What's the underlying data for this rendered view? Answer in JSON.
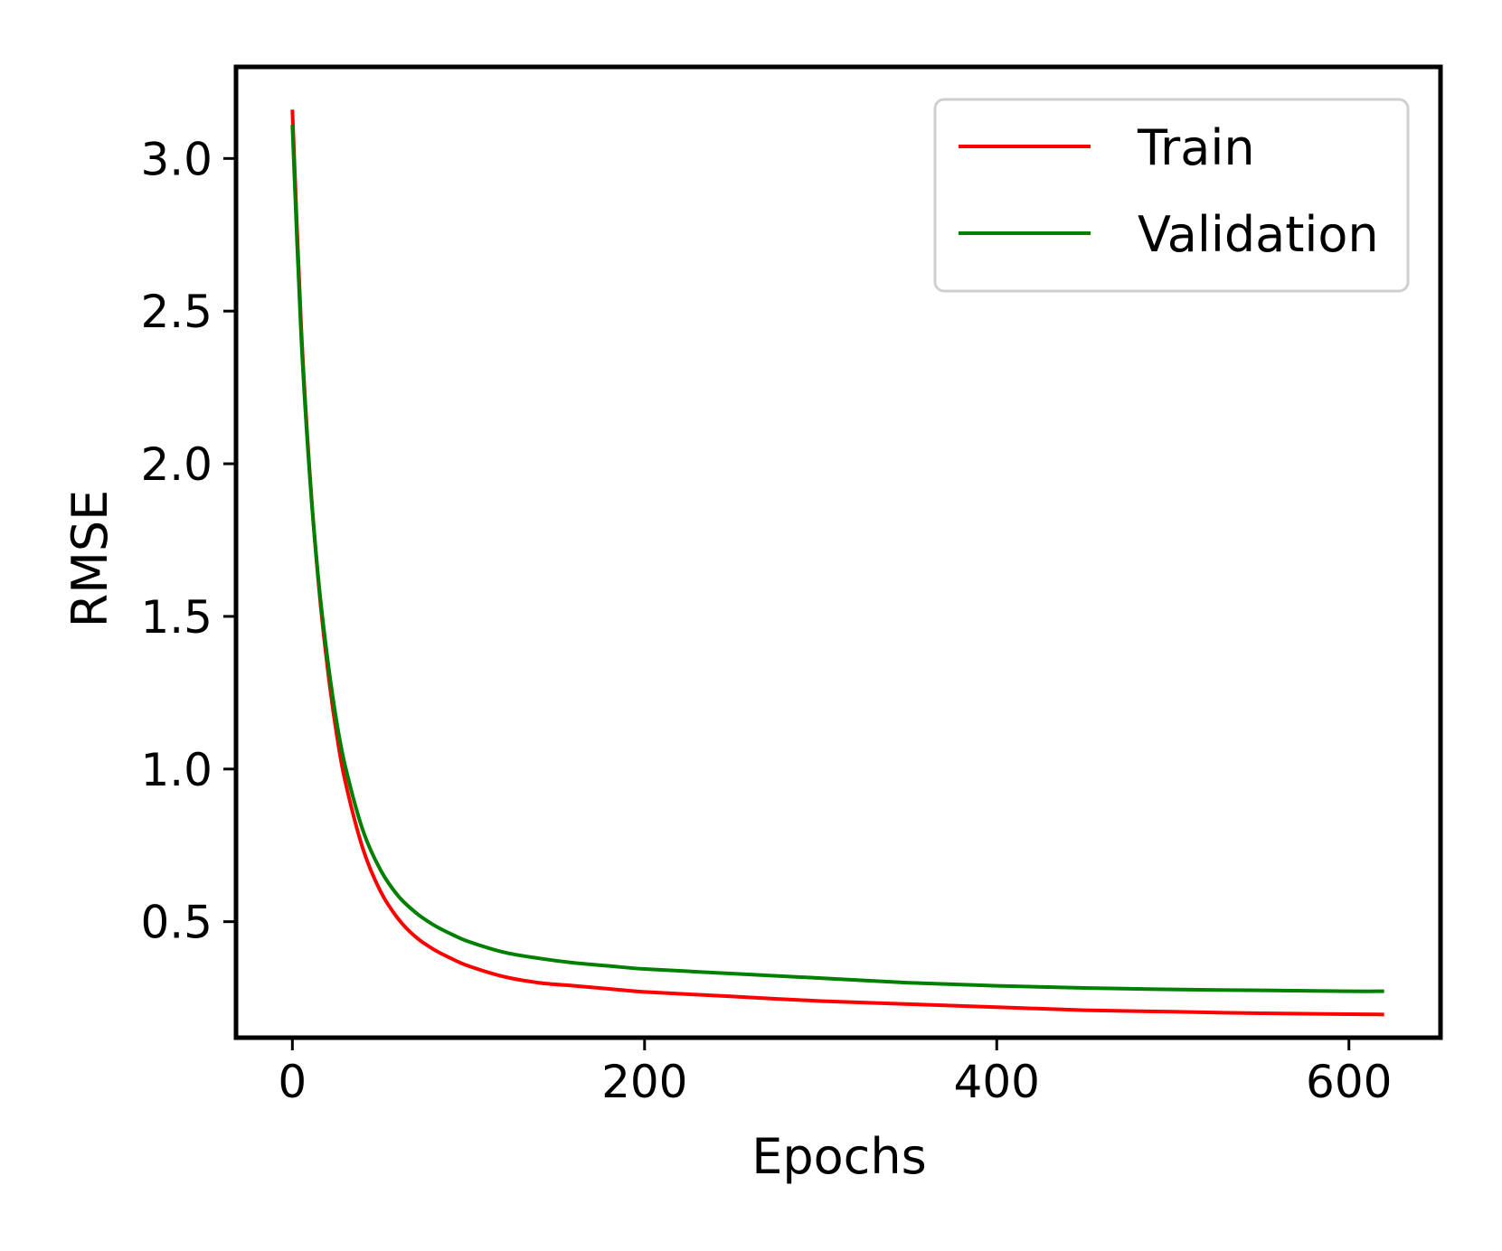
{
  "chart_data": {
    "type": "line",
    "title": "",
    "xlabel": "Epochs",
    "ylabel": "RMSE",
    "xlim": [
      -32,
      652
    ],
    "ylim": [
      0.12,
      3.3
    ],
    "xticks": [
      0,
      200,
      400,
      600
    ],
    "xtick_labels": [
      "0",
      "200",
      "400",
      "600"
    ],
    "yticks": [
      0.5,
      1.0,
      1.5,
      2.0,
      2.5,
      3.0
    ],
    "ytick_labels": [
      "0.5",
      "1.0",
      "1.5",
      "2.0",
      "2.5",
      "3.0"
    ],
    "grid": false,
    "legend_position": "top-right",
    "x": [
      0,
      5,
      10,
      15,
      20,
      25,
      30,
      40,
      50,
      60,
      70,
      80,
      90,
      100,
      120,
      140,
      160,
      180,
      200,
      250,
      300,
      350,
      400,
      450,
      500,
      550,
      600,
      620
    ],
    "series": [
      {
        "name": "Train",
        "color": "#ff0000",
        "values": [
          3.16,
          2.45,
          1.96,
          1.6,
          1.33,
          1.12,
          0.96,
          0.74,
          0.6,
          0.51,
          0.45,
          0.41,
          0.38,
          0.355,
          0.32,
          0.3,
          0.29,
          0.28,
          0.27,
          0.255,
          0.24,
          0.23,
          0.22,
          0.21,
          0.205,
          0.2,
          0.197,
          0.196
        ]
      },
      {
        "name": "Validation",
        "color": "#008000",
        "values": [
          3.11,
          2.42,
          1.95,
          1.61,
          1.36,
          1.16,
          1.01,
          0.8,
          0.67,
          0.585,
          0.53,
          0.49,
          0.46,
          0.435,
          0.4,
          0.38,
          0.365,
          0.355,
          0.345,
          0.33,
          0.315,
          0.3,
          0.29,
          0.283,
          0.278,
          0.275,
          0.272,
          0.272
        ]
      }
    ]
  }
}
